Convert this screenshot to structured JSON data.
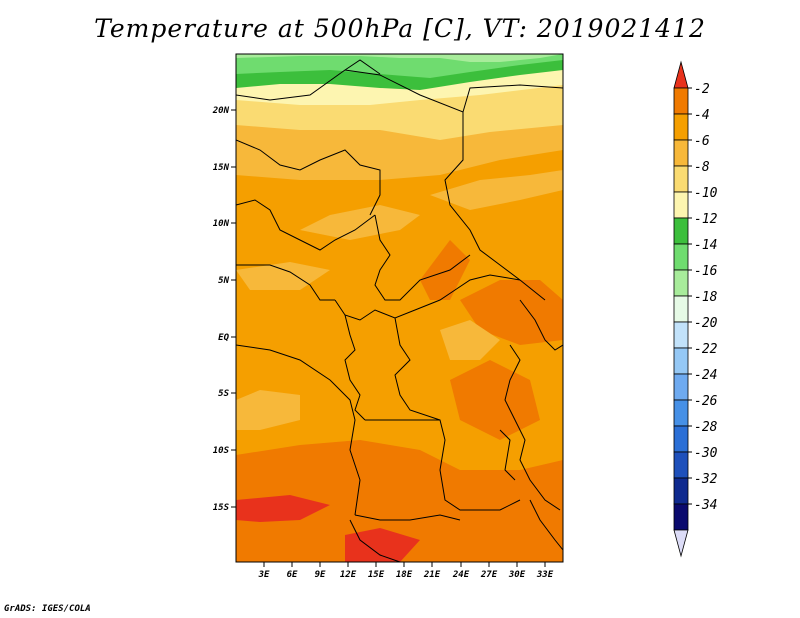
{
  "title": "Temperature at 500hPa [C], VT: 2019021412",
  "credit": "GrADS: IGES/COLA",
  "map": {
    "latitude_labels": [
      "20N",
      "15N",
      "10N",
      "5N",
      "EQ",
      "5S",
      "10S",
      "15S"
    ],
    "longitude_labels": [
      "3E",
      "6E",
      "9E",
      "12E",
      "15E",
      "18E",
      "21E",
      "24E",
      "27E",
      "30E",
      "33E"
    ]
  },
  "colorbar": {
    "labels": [
      "-2",
      "-4",
      "-6",
      "-8",
      "-10",
      "-12",
      "-14",
      "-16",
      "-18",
      "-20",
      "-22",
      "-24",
      "-26",
      "-28",
      "-30",
      "-32",
      "-34"
    ],
    "colors": [
      "#e8321c",
      "#f07a00",
      "#f59f00",
      "#f7b83a",
      "#fadb72",
      "#fdf5b0",
      "#3cbf3c",
      "#6fdc6f",
      "#a8ec9b",
      "#e6fae6",
      "#c2e2fa",
      "#95c8f5",
      "#6eaaf0",
      "#4690e6",
      "#2b6fd6",
      "#1e50bb",
      "#0f2a8f",
      "#0a0a6e",
      "#dcdcf7"
    ]
  }
}
